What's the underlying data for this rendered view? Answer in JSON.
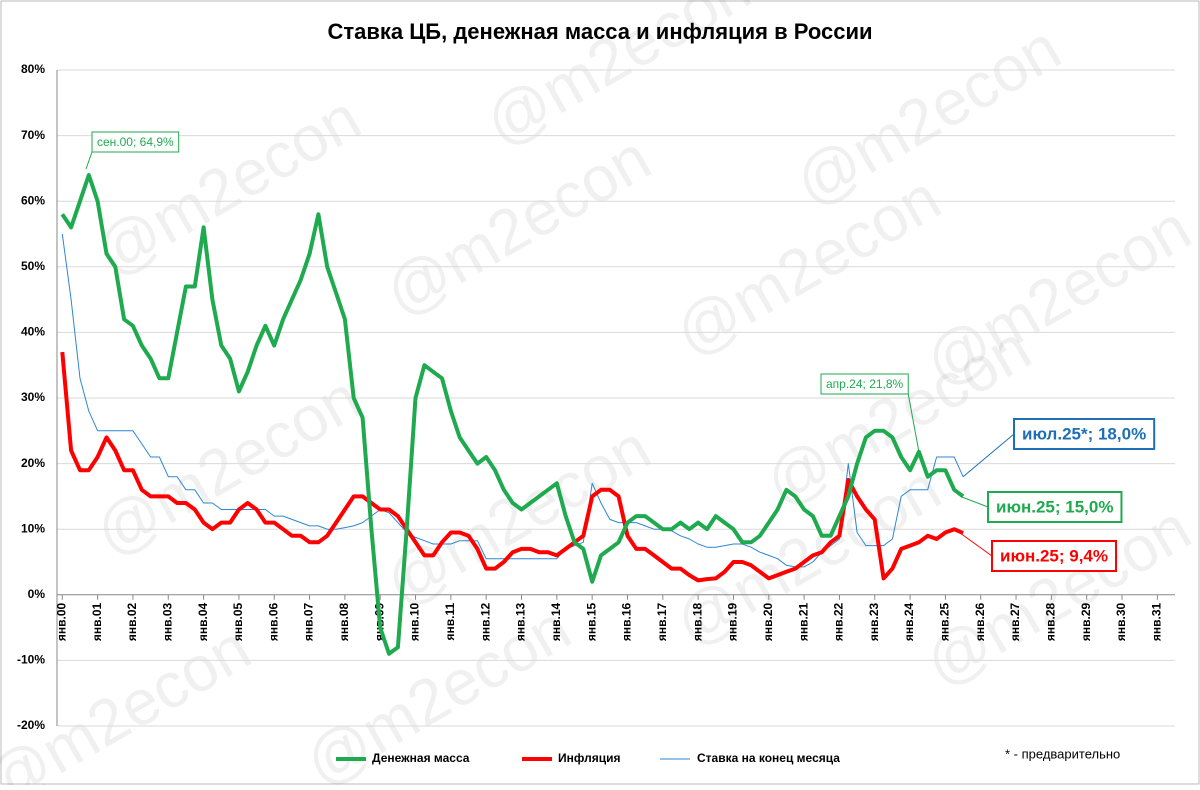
{
  "chart_data": {
    "type": "line",
    "title": "Ставка ЦБ, денежная масса и инфляция в России",
    "watermark": "@m2econ",
    "footnote": "* - предварительно",
    "legend": "bottom",
    "grid": true,
    "xlim": [
      1999.85,
      2031.5
    ],
    "ylim": [
      -20,
      80
    ],
    "yticks": [
      {
        "value": -20,
        "label": "-20%"
      },
      {
        "value": -10,
        "label": "-10%"
      },
      {
        "value": 0,
        "label": "0%"
      },
      {
        "value": 10,
        "label": "10%"
      },
      {
        "value": 20,
        "label": "20%"
      },
      {
        "value": 30,
        "label": "30%"
      },
      {
        "value": 40,
        "label": "40%"
      },
      {
        "value": 50,
        "label": "50%"
      },
      {
        "value": 60,
        "label": "60%"
      },
      {
        "value": 70,
        "label": "70%"
      },
      {
        "value": 80,
        "label": "80%"
      }
    ],
    "xticks": [
      {
        "value": 2000,
        "label": "янв.00"
      },
      {
        "value": 2001,
        "label": "янв.01"
      },
      {
        "value": 2002,
        "label": "янв.02"
      },
      {
        "value": 2003,
        "label": "янв.03"
      },
      {
        "value": 2004,
        "label": "янв.04"
      },
      {
        "value": 2005,
        "label": "янв.05"
      },
      {
        "value": 2006,
        "label": "янв.06"
      },
      {
        "value": 2007,
        "label": "янв.07"
      },
      {
        "value": 2008,
        "label": "янв.08"
      },
      {
        "value": 2009,
        "label": "янв.09"
      },
      {
        "value": 2010,
        "label": "янв.10"
      },
      {
        "value": 2011,
        "label": "янв.11"
      },
      {
        "value": 2012,
        "label": "янв.12"
      },
      {
        "value": 2013,
        "label": "янв.13"
      },
      {
        "value": 2014,
        "label": "янв.14"
      },
      {
        "value": 2015,
        "label": "янв.15"
      },
      {
        "value": 2016,
        "label": "янв.16"
      },
      {
        "value": 2017,
        "label": "янв.17"
      },
      {
        "value": 2018,
        "label": "янв.18"
      },
      {
        "value": 2019,
        "label": "янв.19"
      },
      {
        "value": 2020,
        "label": "янв.20"
      },
      {
        "value": 2021,
        "label": "янв.21"
      },
      {
        "value": 2022,
        "label": "янв.22"
      },
      {
        "value": 2023,
        "label": "янв.23"
      },
      {
        "value": 2024,
        "label": "янв.24"
      },
      {
        "value": 2025,
        "label": "янв.25"
      },
      {
        "value": 2026,
        "label": "янв.26"
      },
      {
        "value": 2027,
        "label": "янв.27"
      },
      {
        "value": 2028,
        "label": "янв.28"
      },
      {
        "value": 2029,
        "label": "янв.29"
      },
      {
        "value": 2030,
        "label": "янв.30"
      },
      {
        "value": 2031,
        "label": "янв.31"
      }
    ],
    "x": [
      2000,
      2000.25,
      2000.5,
      2000.75,
      2001,
      2001.25,
      2001.5,
      2001.75,
      2002,
      2002.25,
      2002.5,
      2002.75,
      2003,
      2003.25,
      2003.5,
      2003.75,
      2004,
      2004.25,
      2004.5,
      2004.75,
      2005,
      2005.25,
      2005.5,
      2005.75,
      2006,
      2006.25,
      2006.5,
      2006.75,
      2007,
      2007.25,
      2007.5,
      2007.75,
      2008,
      2008.25,
      2008.5,
      2008.75,
      2009,
      2009.25,
      2009.5,
      2009.75,
      2010,
      2010.25,
      2010.5,
      2010.75,
      2011,
      2011.25,
      2011.5,
      2011.75,
      2012,
      2012.25,
      2012.5,
      2012.75,
      2013,
      2013.25,
      2013.5,
      2013.75,
      2014,
      2014.25,
      2014.5,
      2014.75,
      2015,
      2015.25,
      2015.5,
      2015.75,
      2016,
      2016.25,
      2016.5,
      2016.75,
      2017,
      2017.25,
      2017.5,
      2017.75,
      2018,
      2018.25,
      2018.5,
      2018.75,
      2019,
      2019.25,
      2019.5,
      2019.75,
      2020,
      2020.25,
      2020.5,
      2020.75,
      2021,
      2021.25,
      2021.5,
      2021.75,
      2022,
      2022.25,
      2022.5,
      2022.75,
      2023,
      2023.25,
      2023.5,
      2023.75,
      2024,
      2024.25,
      2024.5,
      2024.75,
      2025,
      2025.25,
      2025.5
    ],
    "series": [
      {
        "name": "Денежная масса",
        "color": "#1faa4f",
        "width": 4,
        "values": [
          58,
          56,
          60,
          64,
          60,
          52,
          50,
          42,
          41,
          38,
          36,
          33,
          33,
          40,
          47,
          47,
          56,
          45,
          38,
          36,
          31,
          34,
          38,
          41,
          38,
          42,
          45,
          48,
          52,
          58,
          50,
          46,
          42,
          30,
          27,
          10,
          -5,
          -9,
          -8,
          10,
          30,
          35,
          34,
          33,
          28,
          24,
          22,
          20,
          21,
          19,
          16,
          14,
          13,
          14,
          15,
          16,
          17,
          12,
          8,
          7,
          2,
          6,
          7,
          8,
          11,
          12,
          12,
          11,
          10,
          10,
          11,
          10,
          11,
          10,
          12,
          11,
          10,
          8,
          8,
          9,
          11,
          13,
          16,
          15,
          13,
          12,
          9,
          9,
          12,
          15,
          20,
          24,
          25,
          25,
          24,
          21,
          19,
          21.8,
          18,
          19,
          19,
          16,
          15
        ]
      },
      {
        "name": "Инфляция",
        "color": "#ff0000",
        "width": 4,
        "values": [
          37,
          22,
          19,
          19,
          21,
          24,
          22,
          19,
          19,
          16,
          15,
          15,
          15,
          14,
          14,
          13,
          11,
          10,
          11,
          11,
          13,
          14,
          13,
          11,
          11,
          10,
          9,
          9,
          8,
          8,
          9,
          11,
          13,
          15,
          15,
          14,
          13,
          13,
          12,
          10,
          8,
          6,
          6,
          8,
          9.5,
          9.5,
          9,
          7,
          4,
          4,
          5,
          6.5,
          7,
          7,
          6.5,
          6.5,
          6,
          7,
          8,
          9,
          15,
          16,
          16,
          15,
          9,
          7,
          7,
          6,
          5,
          4,
          4,
          3,
          2.2,
          2.4,
          2.5,
          3.5,
          5,
          5,
          4.5,
          3.5,
          2.5,
          3,
          3.5,
          4,
          5,
          6,
          6.5,
          8,
          9,
          17.5,
          15,
          13,
          11.5,
          2.5,
          4,
          7,
          7.5,
          8,
          9,
          8.5,
          9.5,
          10,
          9.4
        ]
      },
      {
        "name": "Ставка на конец месяца",
        "color": "#2e86d4",
        "width": 1,
        "values": [
          55,
          45,
          33,
          28,
          25,
          25,
          25,
          25,
          25,
          23,
          21,
          21,
          18,
          18,
          16,
          16,
          14,
          14,
          13,
          13,
          13,
          13,
          13,
          13,
          12,
          12,
          11.5,
          11,
          10.5,
          10.5,
          10,
          10,
          10.25,
          10.5,
          11,
          12,
          13,
          12.5,
          11,
          9.5,
          8.75,
          8.25,
          7.75,
          7.75,
          7.75,
          8.25,
          8.25,
          8.25,
          5.5,
          5.5,
          5.5,
          5.5,
          5.5,
          5.5,
          5.5,
          5.5,
          5.5,
          7,
          7.5,
          8,
          17,
          14,
          11.5,
          11,
          11,
          11,
          10.5,
          10,
          10,
          9.75,
          9,
          8.5,
          7.75,
          7.25,
          7.25,
          7.5,
          7.75,
          7.75,
          7.25,
          6.5,
          6,
          5.5,
          4.5,
          4.25,
          4.25,
          5,
          6.5,
          7.5,
          8.5,
          20,
          9.5,
          7.5,
          7.5,
          7.5,
          8.5,
          15,
          16,
          16,
          16,
          21,
          21,
          21,
          18
        ]
      }
    ],
    "annotations": [
      {
        "text": "сен.00; 64,9%",
        "x": 2000.67,
        "y": 64.9,
        "color": "#1faa4f"
      },
      {
        "text": "апр.24; 21,8%",
        "x": 2024.25,
        "y": 21.8,
        "color": "#1faa4f"
      },
      {
        "text": "июл.25*; 18,0%",
        "x": 2025.5,
        "y": 18.0,
        "color": "#1f6fb5"
      },
      {
        "text": "июн.25; 15,0%",
        "x": 2025.42,
        "y": 15.0,
        "color": "#1faa4f"
      },
      {
        "text": "июн.25; 9,4%",
        "x": 2025.42,
        "y": 9.4,
        "color": "#ff0000"
      }
    ]
  }
}
